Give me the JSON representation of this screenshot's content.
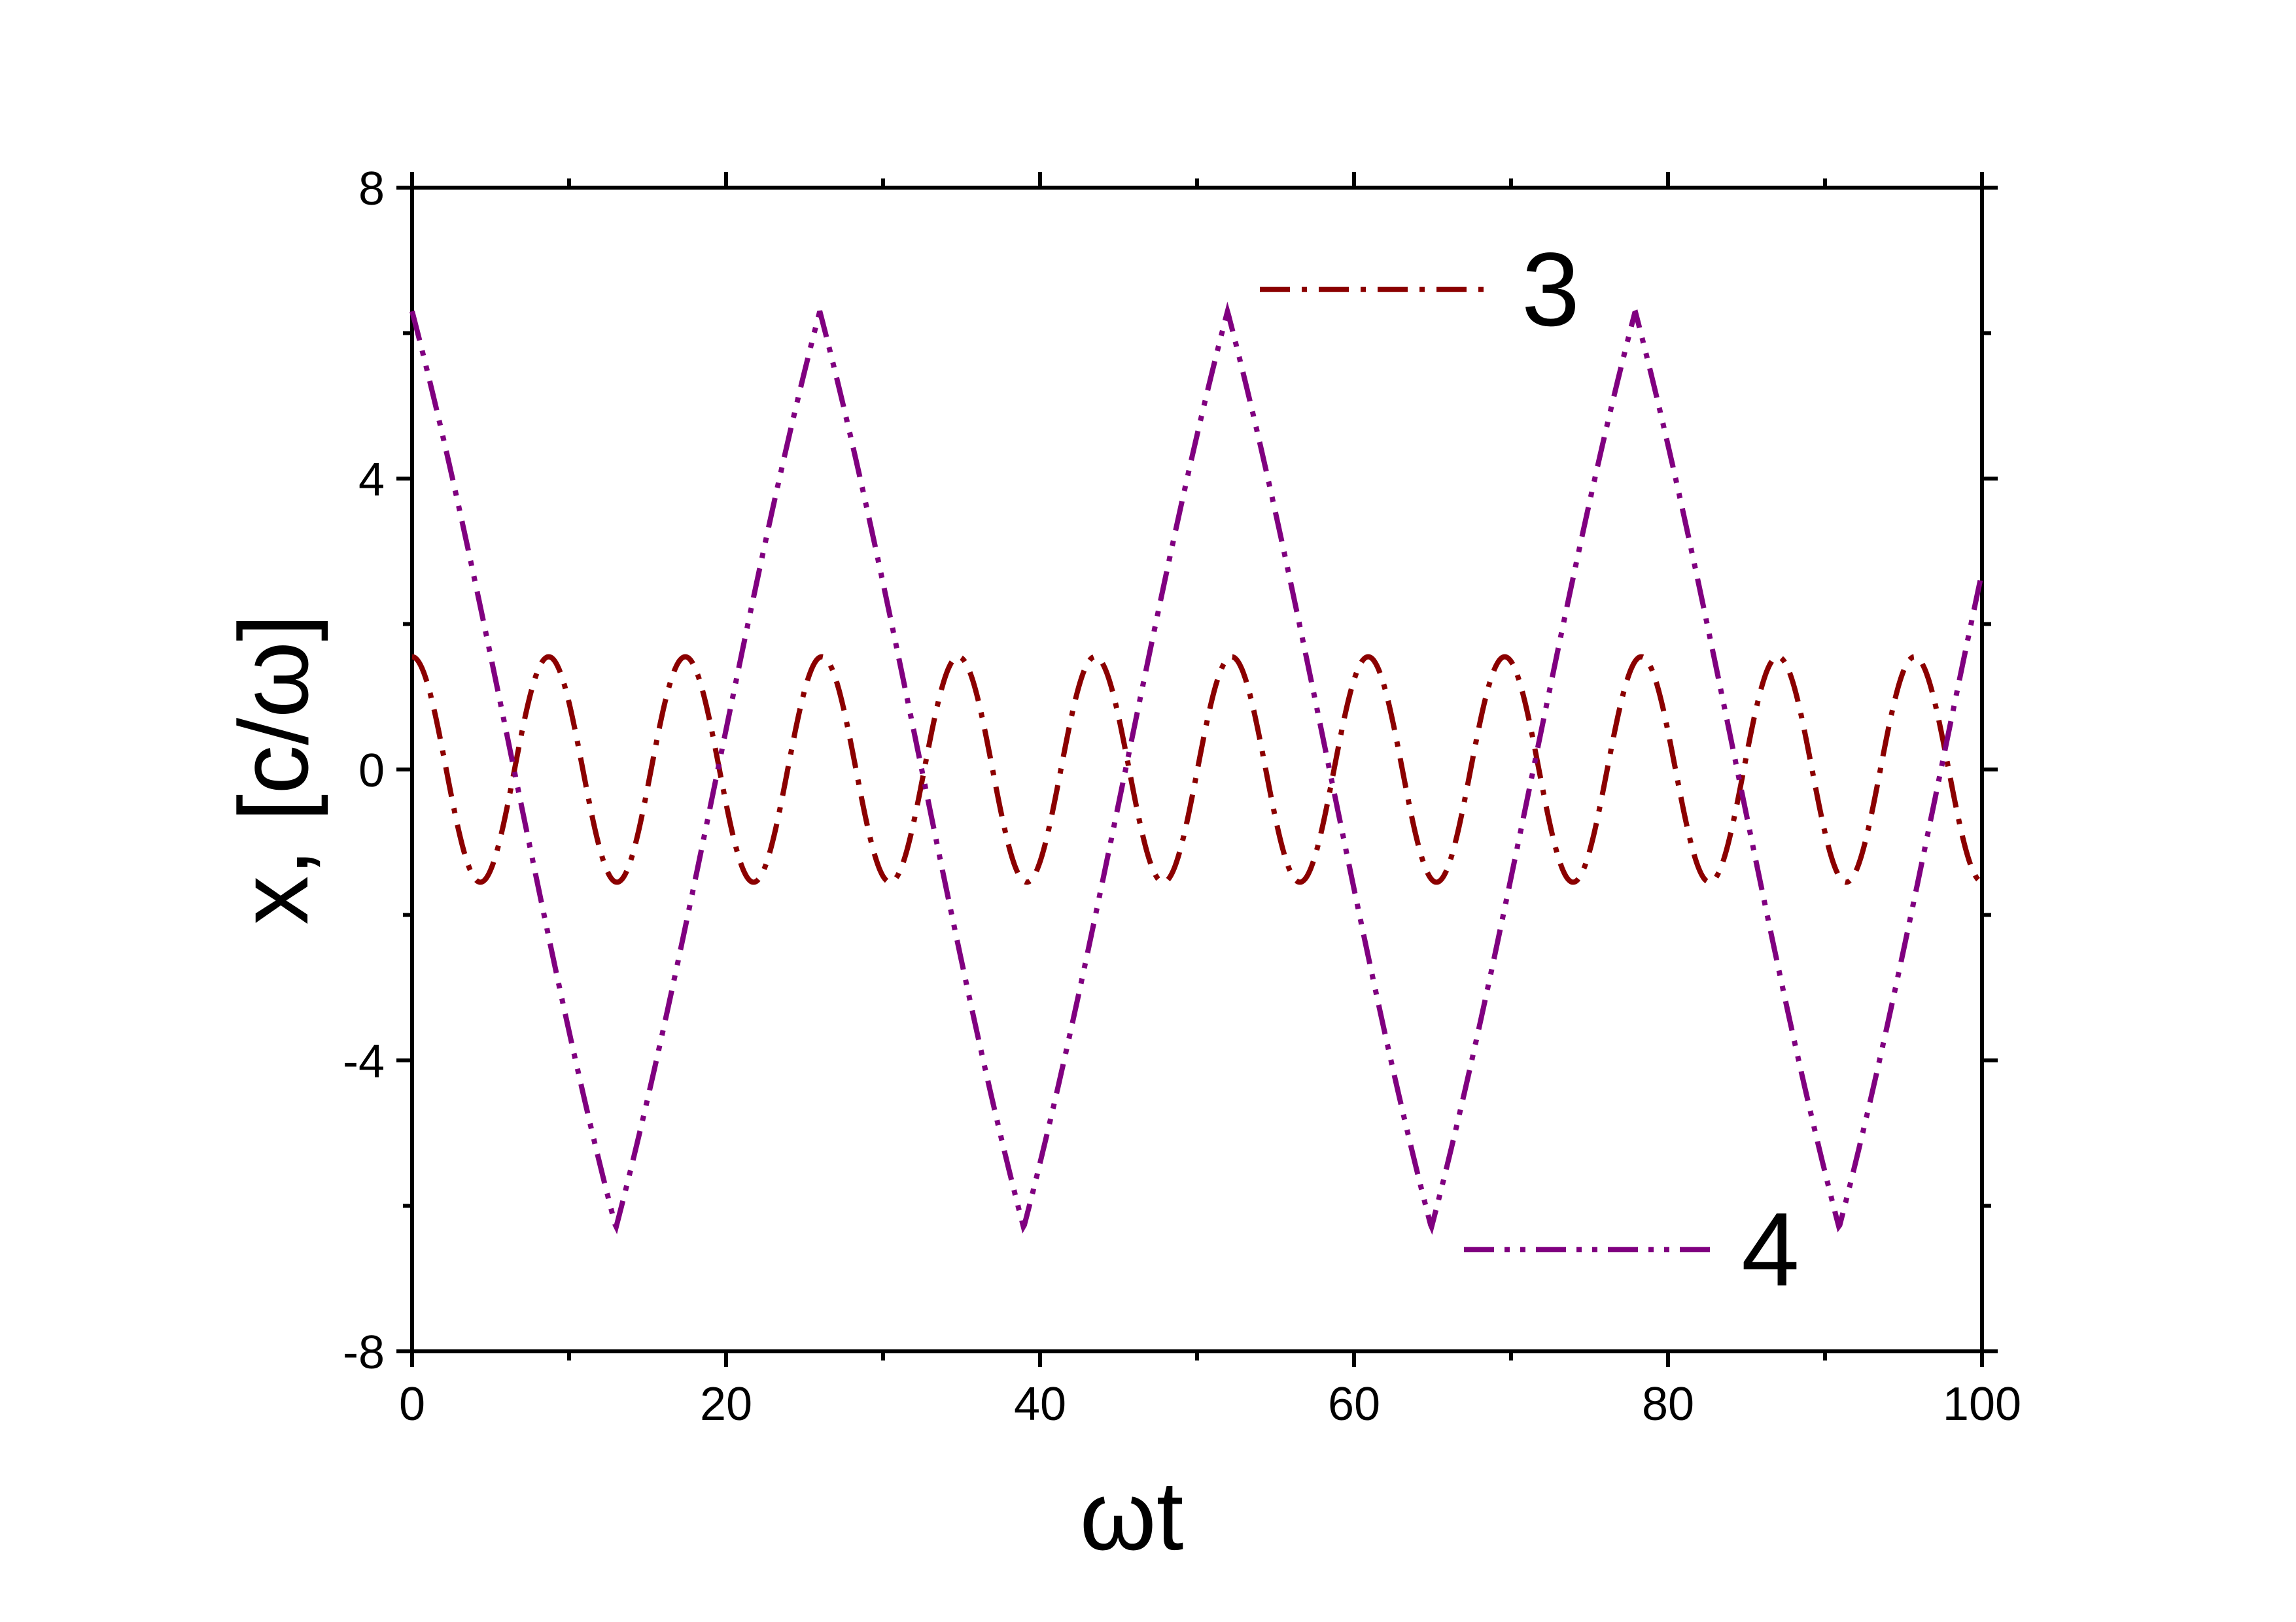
{
  "chart_data": {
    "type": "line",
    "xlabel": "ωt",
    "ylabel": "x, [c/ω]",
    "xlim": [
      0,
      100
    ],
    "ylim": [
      -8,
      8
    ],
    "xticks": [
      "0",
      "20",
      "40",
      "60",
      "80",
      "100"
    ],
    "yticks": [
      "8",
      "4",
      "0",
      "-4",
      "-8"
    ],
    "grid": false,
    "series": [
      {
        "name": "3",
        "color": "#8b0000",
        "dash": "dash-dot",
        "amplitude": 1.55,
        "period": 8.7,
        "phase": 0.0
      },
      {
        "name": "4",
        "color": "#800080",
        "dash": "dash-dot-dot",
        "amplitude": 6.3,
        "period": 25.97,
        "phase": 0.0,
        "shape": "triangle-like"
      }
    ]
  }
}
